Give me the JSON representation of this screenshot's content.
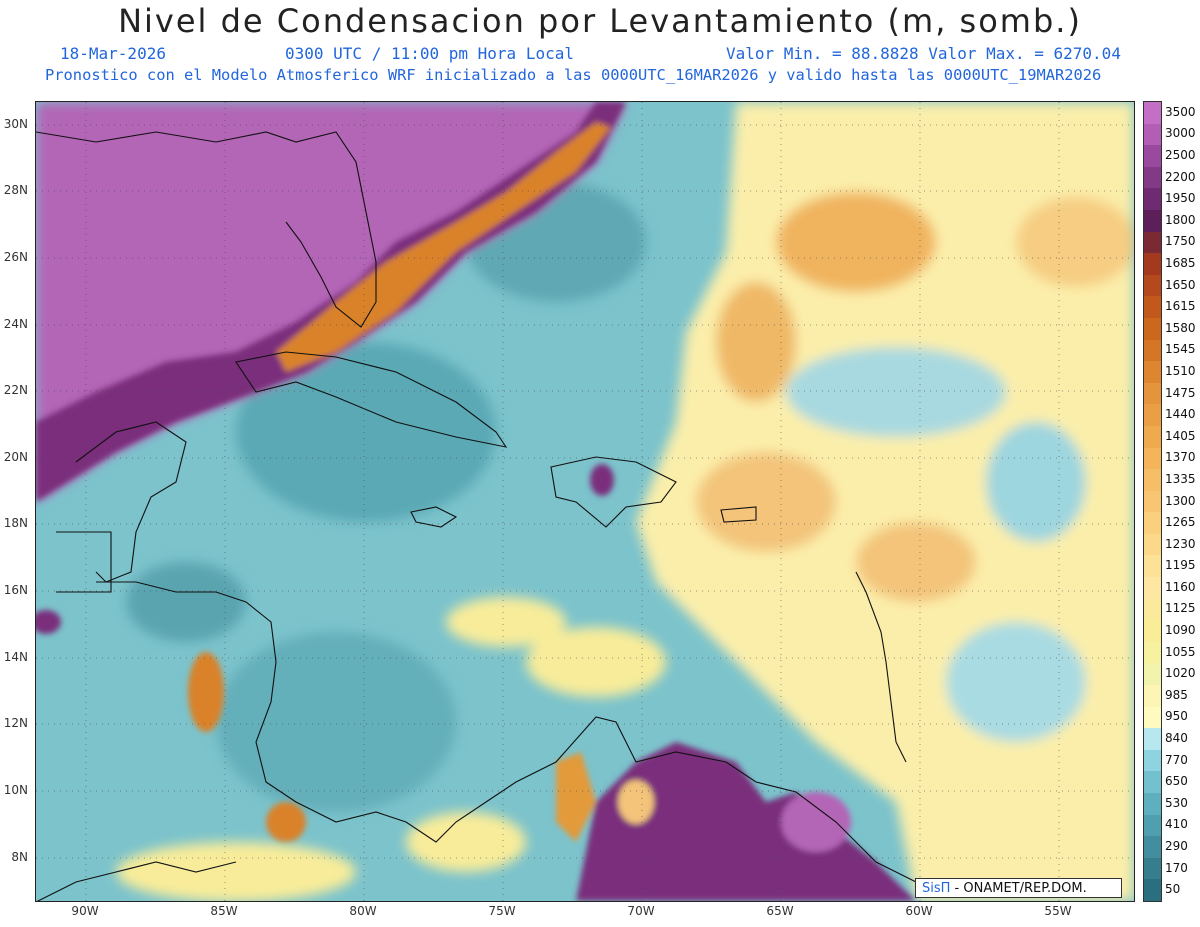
{
  "header": {
    "title": "Nivel de Condensacion por Levantamiento (m, somb.)",
    "date": "18-Mar-2026",
    "time": "0300 UTC / 11:00 pm Hora Local",
    "minmax": "Valor Min. = 88.8828  Valor Max. = 6270.04",
    "model": "Pronostico con el Modelo Atmosferico WRF inicializado a las 0000UTC_16MAR2026 y valido hasta las  0000UTC_19MAR2026"
  },
  "axes": {
    "lon_labels": [
      "90W",
      "85W",
      "80W",
      "75W",
      "70W",
      "65W",
      "60W",
      "55W"
    ],
    "lat_labels": [
      "30N",
      "28N",
      "26N",
      "24N",
      "22N",
      "20N",
      "18N",
      "16N",
      "14N",
      "12N",
      "10N",
      "8N"
    ]
  },
  "colorbar": {
    "labels": [
      "3500",
      "3000",
      "2500",
      "2200",
      "1950",
      "1800",
      "1750",
      "1685",
      "1650",
      "1615",
      "1580",
      "1545",
      "1510",
      "1475",
      "1440",
      "1405",
      "1370",
      "1335",
      "1300",
      "1265",
      "1230",
      "1195",
      "1160",
      "1125",
      "1090",
      "1055",
      "1020",
      "985",
      "950",
      "840",
      "770",
      "650",
      "530",
      "410",
      "290",
      "170",
      "50"
    ],
    "colors": [
      "#c46fc6",
      "#b15eb4",
      "#9a4a9e",
      "#833a86",
      "#6e2b72",
      "#5c1f5a",
      "#7a2a35",
      "#a33a1f",
      "#b3491d",
      "#c2581c",
      "#cc671e",
      "#d57626",
      "#dd852f",
      "#e4943a",
      "#ea9f44",
      "#efaa4e",
      "#f3b45a",
      "#f6be66",
      "#f8c672",
      "#fad07e",
      "#fcd98a",
      "#fde196",
      "#fee7a2",
      "#fcea9c",
      "#f9ee97",
      "#f6f2a0",
      "#f2f3ad",
      "#fdf5b5",
      "#fffac0",
      "#b8e8ef",
      "#8dd3e0",
      "#73c1cf",
      "#5fb0bf",
      "#4f9fae",
      "#428e9e",
      "#367e8e",
      "#2a6f80"
    ]
  },
  "credit": {
    "brand": "SisΠ",
    "text": " - ONAMET/REP.DOM."
  },
  "icons": [
    "map-icon"
  ]
}
